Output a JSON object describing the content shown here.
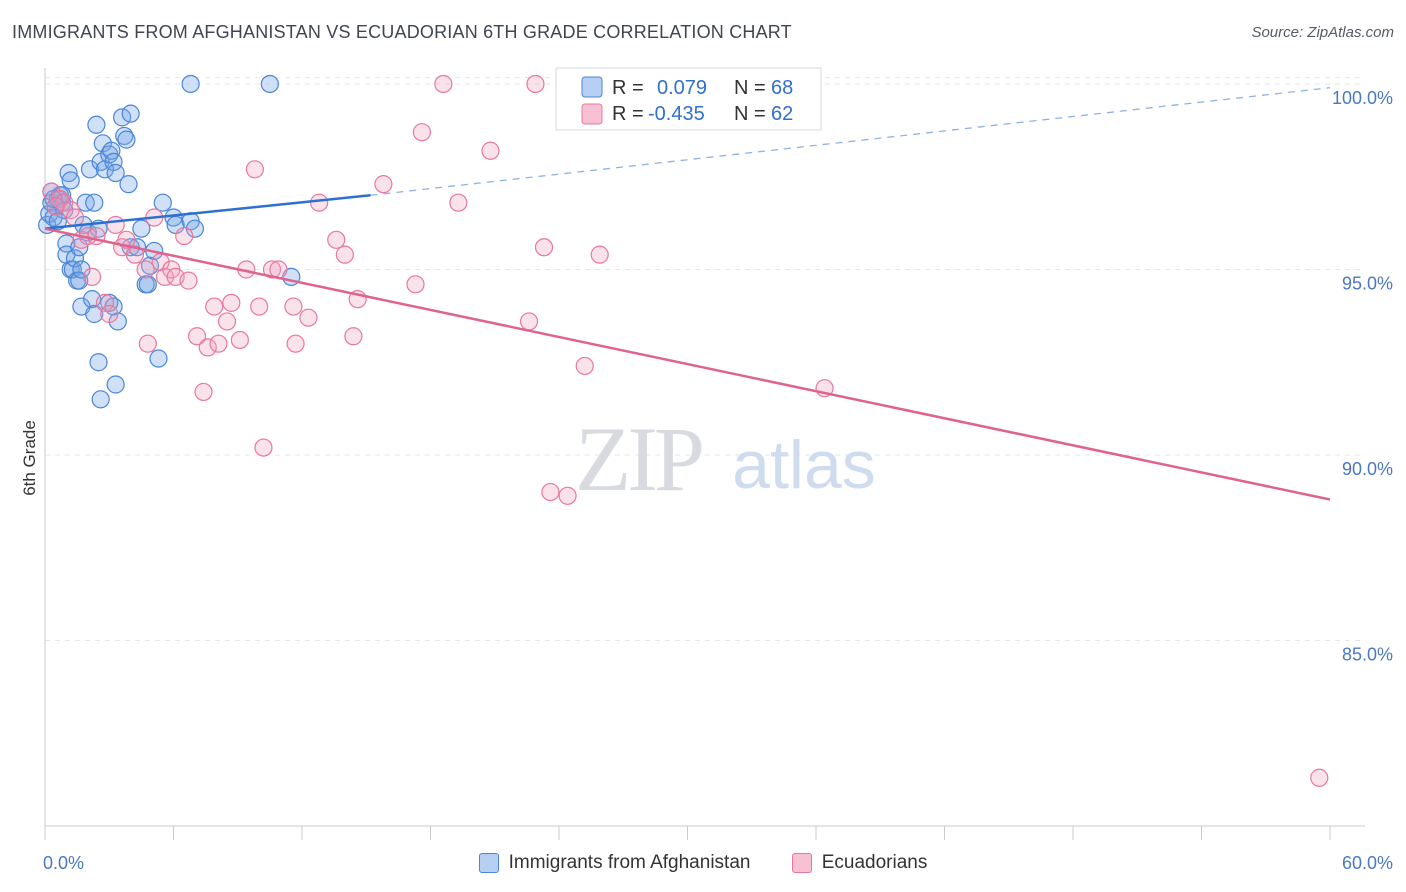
{
  "header": {
    "title": "IMMIGRANTS FROM AFGHANISTAN VS ECUADORIAN 6TH GRADE CORRELATION CHART",
    "source": "Source: ZipAtlas.com"
  },
  "watermark": {
    "zip": "ZIP",
    "atlas": "atlas"
  },
  "colors": {
    "blue": "#4a86d8",
    "pink": "#e8789e",
    "blue_line": "#2f6fd1",
    "pink_line": "#e0628f",
    "axis_text": "#4a78c2"
  },
  "chart_data": {
    "type": "scatter",
    "title": "IMMIGRANTS FROM AFGHANISTAN VS ECUADORIAN 6TH GRADE CORRELATION CHART",
    "xlabel": "",
    "ylabel": "6th Grade",
    "xlim": [
      0,
      60
    ],
    "ylim": [
      80.0,
      100.7
    ],
    "x_tick_labels": [
      "0.0%",
      "60.0%"
    ],
    "y_ticks": [
      85,
      90,
      95,
      100
    ],
    "y_tick_labels": [
      "85.0%",
      "90.0%",
      "95.0%",
      "100.0%"
    ],
    "grid": true,
    "stats": [
      {
        "r_label": "R =",
        "r_value": "0.079",
        "n_label": "N =",
        "n_value": "68"
      },
      {
        "r_label": "R =",
        "r_value": "-0.435",
        "n_label": "N =",
        "n_value": "62"
      }
    ],
    "series": [
      {
        "name": "Immigrants from Afghanistan",
        "color": "#4a86d8",
        "trend": {
          "x": [
            0,
            15.2
          ],
          "y": [
            96.1,
            97.0
          ],
          "dashed_x": [
            15.2,
            60
          ],
          "dashed_y": [
            97.0,
            99.9
          ]
        },
        "points": [
          [
            0.1,
            96.2
          ],
          [
            0.2,
            96.5
          ],
          [
            0.3,
            96.8
          ],
          [
            0.3,
            97.1
          ],
          [
            0.4,
            96.4
          ],
          [
            0.5,
            96.7
          ],
          [
            0.6,
            96.9
          ],
          [
            0.7,
            97.0
          ],
          [
            0.8,
            96.8
          ],
          [
            0.9,
            96.6
          ],
          [
            1.0,
            95.7
          ],
          [
            1.0,
            95.4
          ],
          [
            1.1,
            97.6
          ],
          [
            1.2,
            97.4
          ],
          [
            1.2,
            95.0
          ],
          [
            1.3,
            95.0
          ],
          [
            1.4,
            95.3
          ],
          [
            1.5,
            94.7
          ],
          [
            1.6,
            95.6
          ],
          [
            1.6,
            94.7
          ],
          [
            1.7,
            95.0
          ],
          [
            1.7,
            94.0
          ],
          [
            1.8,
            96.2
          ],
          [
            1.9,
            96.8
          ],
          [
            2.0,
            96.0
          ],
          [
            2.1,
            97.7
          ],
          [
            2.2,
            94.2
          ],
          [
            2.3,
            93.8
          ],
          [
            2.3,
            96.8
          ],
          [
            2.4,
            98.9
          ],
          [
            2.5,
            96.1
          ],
          [
            2.6,
            97.9
          ],
          [
            2.7,
            98.4
          ],
          [
            2.8,
            97.7
          ],
          [
            3.0,
            98.1
          ],
          [
            3.1,
            98.2
          ],
          [
            3.2,
            97.9
          ],
          [
            3.3,
            97.6
          ],
          [
            3.0,
            94.1
          ],
          [
            3.2,
            94.0
          ],
          [
            3.4,
            93.6
          ],
          [
            3.3,
            91.9
          ],
          [
            2.6,
            91.5
          ],
          [
            2.5,
            92.5
          ],
          [
            3.6,
            99.1
          ],
          [
            3.7,
            98.6
          ],
          [
            3.8,
            98.5
          ],
          [
            3.9,
            97.3
          ],
          [
            4.0,
            95.6
          ],
          [
            4.0,
            99.2
          ],
          [
            4.3,
            95.6
          ],
          [
            4.5,
            96.1
          ],
          [
            4.7,
            94.6
          ],
          [
            4.8,
            94.6
          ],
          [
            4.9,
            95.1
          ],
          [
            5.1,
            95.5
          ],
          [
            5.3,
            92.6
          ],
          [
            5.5,
            96.8
          ],
          [
            6.0,
            96.4
          ],
          [
            6.1,
            96.2
          ],
          [
            6.8,
            96.3
          ],
          [
            6.8,
            100.0
          ],
          [
            7.0,
            96.1
          ],
          [
            10.5,
            100.0
          ],
          [
            11.5,
            94.8
          ],
          [
            0.8,
            97.0
          ],
          [
            0.6,
            96.3
          ],
          [
            0.4,
            96.9
          ]
        ]
      },
      {
        "name": "Ecuadorians",
        "color": "#e8789e",
        "trend": {
          "x": [
            0,
            60
          ],
          "y": [
            96.1,
            88.8
          ]
        },
        "points": [
          [
            0.3,
            97.1
          ],
          [
            0.7,
            96.9
          ],
          [
            0.9,
            96.8
          ],
          [
            1.2,
            96.6
          ],
          [
            1.4,
            96.4
          ],
          [
            1.7,
            95.8
          ],
          [
            2.0,
            95.9
          ],
          [
            2.2,
            94.8
          ],
          [
            2.4,
            95.9
          ],
          [
            2.8,
            94.1
          ],
          [
            3.0,
            93.8
          ],
          [
            3.3,
            96.2
          ],
          [
            3.6,
            95.6
          ],
          [
            3.8,
            95.8
          ],
          [
            4.2,
            95.4
          ],
          [
            4.7,
            95.0
          ],
          [
            4.8,
            93.0
          ],
          [
            5.1,
            96.4
          ],
          [
            5.4,
            95.2
          ],
          [
            5.6,
            94.8
          ],
          [
            5.9,
            95.0
          ],
          [
            6.1,
            94.8
          ],
          [
            6.5,
            95.9
          ],
          [
            6.7,
            94.7
          ],
          [
            7.1,
            93.2
          ],
          [
            7.4,
            91.7
          ],
          [
            7.6,
            92.9
          ],
          [
            7.9,
            94.0
          ],
          [
            8.1,
            93.0
          ],
          [
            8.5,
            93.6
          ],
          [
            8.7,
            94.1
          ],
          [
            9.1,
            93.1
          ],
          [
            9.4,
            95.0
          ],
          [
            9.8,
            97.7
          ],
          [
            10.0,
            94.0
          ],
          [
            10.2,
            90.2
          ],
          [
            10.6,
            95.0
          ],
          [
            10.9,
            95.0
          ],
          [
            11.6,
            94.0
          ],
          [
            11.7,
            93.0
          ],
          [
            12.3,
            93.7
          ],
          [
            12.8,
            96.8
          ],
          [
            13.6,
            95.8
          ],
          [
            14.0,
            95.4
          ],
          [
            14.4,
            93.2
          ],
          [
            14.6,
            94.2
          ],
          [
            15.8,
            97.3
          ],
          [
            17.3,
            94.6
          ],
          [
            17.6,
            98.7
          ],
          [
            18.6,
            100.0
          ],
          [
            19.3,
            96.8
          ],
          [
            20.8,
            98.2
          ],
          [
            22.6,
            93.6
          ],
          [
            22.9,
            100.0
          ],
          [
            23.3,
            95.6
          ],
          [
            23.6,
            89.0
          ],
          [
            24.4,
            88.9
          ],
          [
            25.2,
            92.4
          ],
          [
            25.9,
            95.4
          ],
          [
            36.4,
            91.8
          ],
          [
            59.5,
            81.3
          ],
          [
            0.5,
            96.7
          ]
        ]
      }
    ]
  }
}
